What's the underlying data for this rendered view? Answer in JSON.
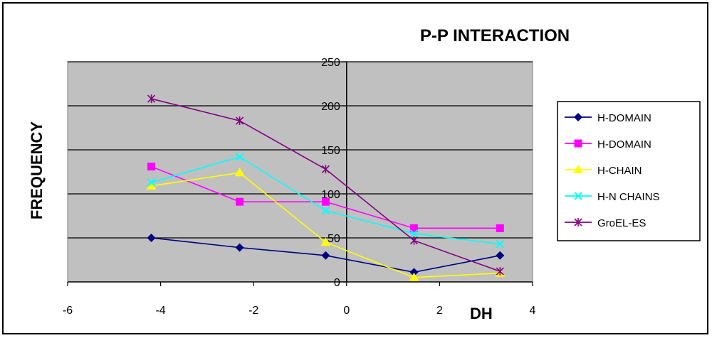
{
  "chart_data": {
    "type": "scatter",
    "title": "P-P INTERACTION",
    "xlabel": "DH",
    "ylabel": "FREQUENCY",
    "xlim": [
      -6,
      4
    ],
    "ylim": [
      0,
      250
    ],
    "x_ticks": [
      -6,
      -4,
      -2,
      0,
      2,
      4
    ],
    "y_ticks": [
      0,
      50,
      100,
      150,
      200,
      250
    ],
    "grid": "horizontal",
    "legend_position": "right",
    "series": [
      {
        "name": "H-DOMAIN",
        "color": "#000080",
        "marker": "diamond",
        "x": [
          -4.2,
          -2.3,
          -0.45,
          1.45,
          3.3
        ],
        "y": [
          50,
          39,
          30,
          11,
          30
        ]
      },
      {
        "name": "H-DOMAIN",
        "color": "#ff00ff",
        "marker": "square",
        "x": [
          -4.2,
          -2.3,
          -0.45,
          1.45,
          3.3
        ],
        "y": [
          131,
          91,
          91,
          61,
          61
        ]
      },
      {
        "name": "H-CHAIN",
        "color": "#ffff00",
        "marker": "triangle",
        "x": [
          -4.2,
          -2.3,
          -0.45,
          1.45,
          3.3
        ],
        "y": [
          109,
          124,
          45,
          5,
          10
        ]
      },
      {
        "name": "H-N CHAINS",
        "color": "#00ffff",
        "marker": "x",
        "x": [
          -4.2,
          -2.3,
          -0.45,
          1.45,
          3.3
        ],
        "y": [
          113,
          142,
          81,
          55,
          43
        ]
      },
      {
        "name": "GroEL-ES",
        "color": "#800080",
        "marker": "star",
        "x": [
          -4.2,
          -2.3,
          -0.45,
          1.45,
          3.3
        ],
        "y": [
          208,
          183,
          128,
          47,
          12
        ]
      }
    ]
  }
}
